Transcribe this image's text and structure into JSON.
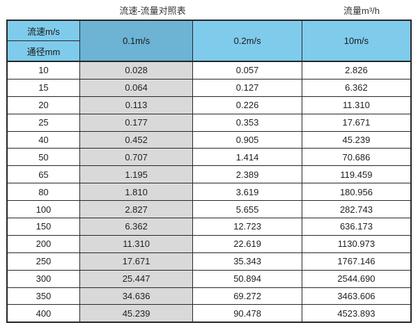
{
  "captions": {
    "left": "流速-流量对照表",
    "right": "流量m³/h"
  },
  "table": {
    "corner_top": "流速m/s",
    "corner_bottom": "通径mm",
    "velocity_headers": [
      "0.1m/s",
      "0.2m/s",
      "10m/s"
    ],
    "rows": [
      {
        "dn": "10",
        "values": [
          "0.028",
          "0.057",
          "2.826"
        ]
      },
      {
        "dn": "15",
        "values": [
          "0.064",
          "0.127",
          "6.362"
        ]
      },
      {
        "dn": "20",
        "values": [
          "0.113",
          "0.226",
          "11.310"
        ]
      },
      {
        "dn": "25",
        "values": [
          "0.177",
          "0.353",
          "17.671"
        ]
      },
      {
        "dn": "40",
        "values": [
          "0.452",
          "0.905",
          "45.239"
        ]
      },
      {
        "dn": "50",
        "values": [
          "0.707",
          "1.414",
          "70.686"
        ]
      },
      {
        "dn": "65",
        "values": [
          "1.195",
          "2.389",
          "119.459"
        ]
      },
      {
        "dn": "80",
        "values": [
          "1.810",
          "3.619",
          "180.956"
        ]
      },
      {
        "dn": "100",
        "values": [
          "2.827",
          "5.655",
          "282.743"
        ]
      },
      {
        "dn": "150",
        "values": [
          "6.362",
          "12.723",
          "636.173"
        ]
      },
      {
        "dn": "200",
        "values": [
          "11.310",
          "22.619",
          "1130.973"
        ]
      },
      {
        "dn": "250",
        "values": [
          "17.671",
          "35.343",
          "1767.146"
        ]
      },
      {
        "dn": "300",
        "values": [
          "25.447",
          "50.894",
          "2544.690"
        ]
      },
      {
        "dn": "350",
        "values": [
          "34.636",
          "69.272",
          "3463.606"
        ]
      },
      {
        "dn": "400",
        "values": [
          "45.239",
          "90.478",
          "4523.893"
        ]
      }
    ]
  },
  "colors": {
    "header_light_blue": "#7fcbec",
    "header_dark_blue": "#6cb3d4",
    "data_column_gray": "#d9d9d9",
    "border": "#262626",
    "background": "#ffffff"
  },
  "chart_data": {
    "type": "table",
    "title": "流速-流量对照表",
    "unit_label": "流量m³/h",
    "columns": [
      "通径mm",
      "0.1m/s",
      "0.2m/s",
      "10m/s"
    ],
    "row_header_label": "流速m/s",
    "rows": [
      [
        "10",
        "0.028",
        "0.057",
        "2.826"
      ],
      [
        "15",
        "0.064",
        "0.127",
        "6.362"
      ],
      [
        "20",
        "0.113",
        "0.226",
        "11.310"
      ],
      [
        "25",
        "0.177",
        "0.353",
        "17.671"
      ],
      [
        "40",
        "0.452",
        "0.905",
        "45.239"
      ],
      [
        "50",
        "0.707",
        "1.414",
        "70.686"
      ],
      [
        "65",
        "1.195",
        "2.389",
        "119.459"
      ],
      [
        "80",
        "1.810",
        "3.619",
        "180.956"
      ],
      [
        "100",
        "2.827",
        "5.655",
        "282.743"
      ],
      [
        "150",
        "6.362",
        "12.723",
        "636.173"
      ],
      [
        "200",
        "11.310",
        "22.619",
        "1130.973"
      ],
      [
        "250",
        "17.671",
        "35.343",
        "1767.146"
      ],
      [
        "300",
        "25.447",
        "50.894",
        "2544.690"
      ],
      [
        "350",
        "34.636",
        "69.272",
        "3463.606"
      ],
      [
        "400",
        "45.239",
        "90.478",
        "4523.893"
      ]
    ]
  }
}
